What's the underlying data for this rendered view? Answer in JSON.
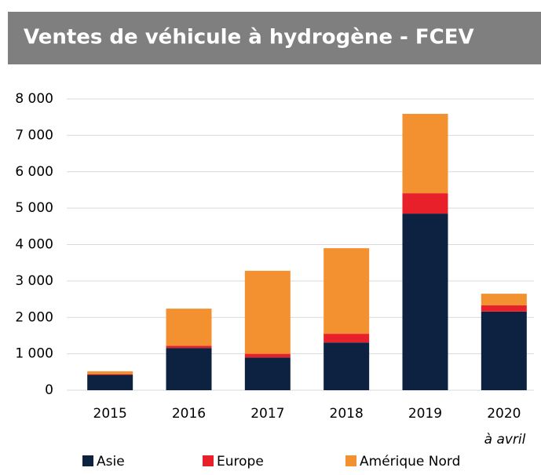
{
  "chart_data": {
    "type": "stacked_bar",
    "title": "Ventes de véhicule à hydrogène - FCEV",
    "categories": [
      "2015",
      "2016",
      "2017",
      "2018",
      "2019",
      "2020"
    ],
    "annotation": "à avril",
    "series": [
      {
        "name": "Asie",
        "color": "#0d2240",
        "values": [
          420,
          1160,
          900,
          1310,
          4850,
          2160
        ]
      },
      {
        "name": "Europe",
        "color": "#e8202a",
        "values": [
          20,
          60,
          100,
          240,
          560,
          170
        ]
      },
      {
        "name": "Amérique Nord",
        "color": "#f39130",
        "values": [
          80,
          1020,
          2280,
          2350,
          2180,
          320
        ]
      }
    ],
    "ylim": [
      0,
      8000
    ],
    "yticks": [
      0,
      {
        "value": 1000,
        "label": "1 000"
      },
      {
        "value": 2000,
        "label": "2 000"
      },
      {
        "value": 3000,
        "label": "3 000"
      },
      {
        "value": 4000,
        "label": "4 000"
      },
      {
        "value": 5000,
        "label": "5 000"
      },
      {
        "value": 6000,
        "label": "6 000"
      },
      {
        "value": 7000,
        "label": "7 000"
      },
      {
        "value": 8000,
        "label": "8 000"
      }
    ],
    "grid": true
  }
}
